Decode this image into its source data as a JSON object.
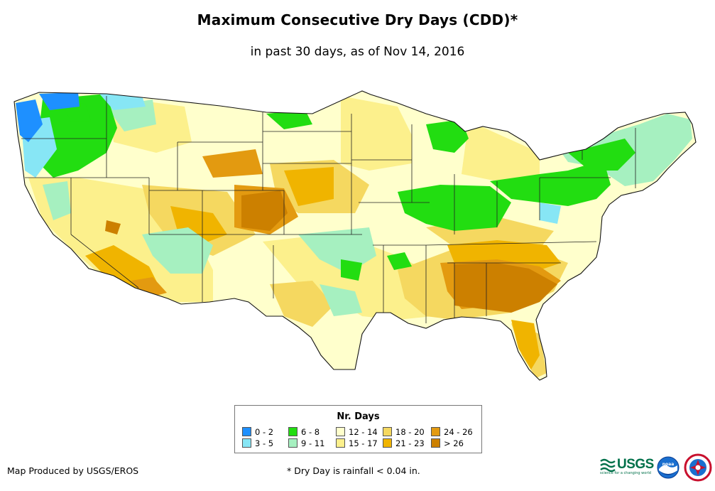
{
  "title": "Maximum Consecutive Dry Days (CDD)*",
  "subtitle": "in past 30 days, as of Nov 14, 2016",
  "legend": {
    "title": "Nr. Days",
    "items": [
      {
        "label": "0 - 2",
        "color": "#1e90ff"
      },
      {
        "label": "3 - 5",
        "color": "#87e6f5"
      },
      {
        "label": "6 - 8",
        "color": "#22dd11"
      },
      {
        "label": "9 - 11",
        "color": "#a6f0c0"
      },
      {
        "label": "12 - 14",
        "color": "#ffffcc"
      },
      {
        "label": "15 - 17",
        "color": "#fcf08c"
      },
      {
        "label": "18 - 20",
        "color": "#f5d860"
      },
      {
        "label": "21 - 23",
        "color": "#f0b400"
      },
      {
        "label": "24 - 26",
        "color": "#e39a10"
      },
      {
        "label": "> 26",
        "color": "#cc8000"
      }
    ]
  },
  "footer": {
    "credit": "Map Produced by USGS/EROS",
    "note": "* Dry Day is rainfall < 0.04 in."
  },
  "logos": {
    "usgs_text": "USGS",
    "usgs_tagline": "science for a changing world",
    "noaa_text": "noaa"
  }
}
